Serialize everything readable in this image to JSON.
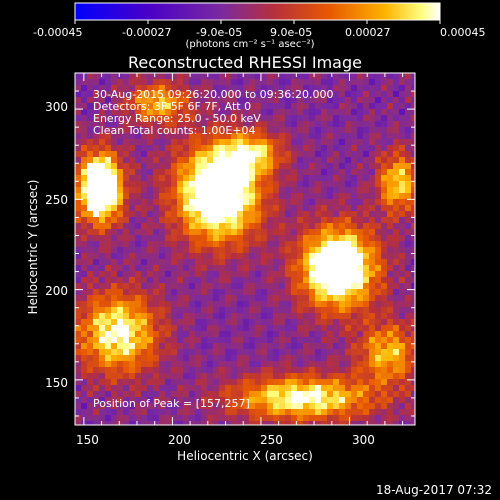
{
  "colorbar": {
    "ticks": [
      "-0.00045",
      "-0.00027",
      "-9.0e-05",
      "9.0e-05",
      "0.00027",
      "0.00045"
    ],
    "units": "(photons cm⁻² s⁻¹ asec⁻²)",
    "stops": [
      "#0000ff",
      "#4a00c8",
      "#7a2aa0",
      "#b8303a",
      "#e85a00",
      "#ffb300",
      "#ffff80",
      "#ffffff"
    ]
  },
  "title": "Reconstructed RHESSI Image",
  "info": {
    "time": "30-Aug-2015 09:26:20.000 to 09:36:20.000",
    "detectors": "Detectors: 3F 5F 6F 7F, Att 0",
    "energy": "Energy Range: 25.0 - 50.0 keV",
    "clean": "Clean     Total counts: 1.00E+04"
  },
  "peak": "Position of Peak = [157,257]",
  "axes": {
    "xlabel": "Heliocentric X (arcsec)",
    "ylabel": "Heliocentric Y (arcsec)",
    "xticks": [
      "150",
      "200",
      "250",
      "300"
    ],
    "yticks": [
      "150",
      "200",
      "250",
      "300"
    ]
  },
  "footer": "18-Aug-2017 07:32"
}
